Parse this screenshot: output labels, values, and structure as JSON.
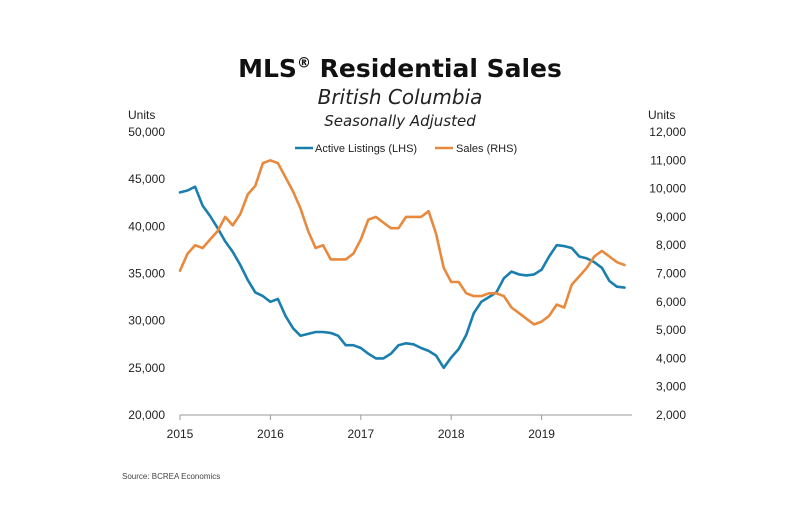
{
  "title": {
    "main": "MLS",
    "mark": "®",
    "rest": " Residential Sales"
  },
  "subtitle": "British Columbia",
  "subsubtitle": "Seasonally Adjusted",
  "source": "Source: BCREA Economics",
  "chart_data": {
    "type": "line",
    "x_ticks": [
      "2015",
      "2016",
      "2017",
      "2018",
      "2019"
    ],
    "x_range": [
      2015,
      2020
    ],
    "left_axis": {
      "label": "Units",
      "range": [
        20000,
        50000
      ],
      "ticks": [
        "20,000",
        "25,000",
        "30,000",
        "35,000",
        "40,000",
        "45,000",
        "50,000"
      ]
    },
    "right_axis": {
      "label": "Units",
      "range": [
        2000,
        12000
      ],
      "ticks": [
        "2,000",
        "3,000",
        "4,000",
        "5,000",
        "6,000",
        "7,000",
        "8,000",
        "9,000",
        "10,000",
        "11,000",
        "12,000"
      ]
    },
    "legend_position": "top-center",
    "grid": false,
    "series": [
      {
        "name": "Active Listings (LHS)",
        "axis": "left",
        "color": "#1a7fae",
        "x": [
          2015.0,
          2015.083,
          2015.167,
          2015.25,
          2015.333,
          2015.417,
          2015.5,
          2015.583,
          2015.667,
          2015.75,
          2015.833,
          2015.917,
          2016.0,
          2016.083,
          2016.167,
          2016.25,
          2016.333,
          2016.417,
          2016.5,
          2016.583,
          2016.667,
          2016.75,
          2016.833,
          2016.917,
          2017.0,
          2017.083,
          2017.167,
          2017.25,
          2017.333,
          2017.417,
          2017.5,
          2017.583,
          2017.667,
          2017.75,
          2017.833,
          2017.917,
          2018.0,
          2018.083,
          2018.167,
          2018.25,
          2018.333,
          2018.417,
          2018.5,
          2018.583,
          2018.667,
          2018.75,
          2018.833,
          2018.917,
          2019.0,
          2019.083,
          2019.167,
          2019.25,
          2019.333,
          2019.417,
          2019.5,
          2019.583,
          2019.667,
          2019.75,
          2019.833,
          2019.917
        ],
        "values": [
          43600,
          43800,
          44200,
          42200,
          41100,
          39800,
          38400,
          37300,
          35900,
          34300,
          33000,
          32600,
          32000,
          32300,
          30500,
          29200,
          28400,
          28600,
          28800,
          28800,
          28700,
          28400,
          27400,
          27400,
          27100,
          26500,
          26000,
          26000,
          26500,
          27400,
          27600,
          27500,
          27100,
          26800,
          26300,
          25000,
          26100,
          27000,
          28500,
          30800,
          32000,
          32500,
          33000,
          34500,
          35200,
          34900,
          34800,
          34900,
          35400,
          36800,
          38000,
          37900,
          37700,
          36800,
          36600,
          36200,
          35600,
          34200,
          33600,
          33500
        ]
      },
      {
        "name": "Sales (RHS)",
        "axis": "right",
        "color": "#e8893d",
        "x": [
          2015.0,
          2015.083,
          2015.167,
          2015.25,
          2015.333,
          2015.417,
          2015.5,
          2015.583,
          2015.667,
          2015.75,
          2015.833,
          2015.917,
          2016.0,
          2016.083,
          2016.167,
          2016.25,
          2016.333,
          2016.417,
          2016.5,
          2016.583,
          2016.667,
          2016.75,
          2016.833,
          2016.917,
          2017.0,
          2017.083,
          2017.167,
          2017.25,
          2017.333,
          2017.417,
          2017.5,
          2017.583,
          2017.667,
          2017.75,
          2017.833,
          2017.917,
          2018.0,
          2018.083,
          2018.167,
          2018.25,
          2018.333,
          2018.417,
          2018.5,
          2018.583,
          2018.667,
          2018.75,
          2018.833,
          2018.917,
          2019.0,
          2019.083,
          2019.167,
          2019.25,
          2019.333,
          2019.417,
          2019.5,
          2019.583,
          2019.667,
          2019.75,
          2019.833,
          2019.917
        ],
        "values": [
          7100,
          7700,
          8000,
          7900,
          8200,
          8500,
          9000,
          8700,
          9100,
          9800,
          10100,
          10900,
          11000,
          10900,
          10400,
          9900,
          9300,
          8500,
          7900,
          8000,
          7500,
          7500,
          7500,
          7700,
          8200,
          8900,
          9000,
          8800,
          8600,
          8600,
          9000,
          9000,
          9000,
          9200,
          8400,
          7200,
          6700,
          6700,
          6300,
          6200,
          6200,
          6300,
          6300,
          6200,
          5800,
          5600,
          5400,
          5200,
          5300,
          5500,
          5900,
          5800,
          6600,
          6900,
          7200,
          7600,
          7800,
          7600,
          7400,
          7300
        ]
      }
    ]
  }
}
